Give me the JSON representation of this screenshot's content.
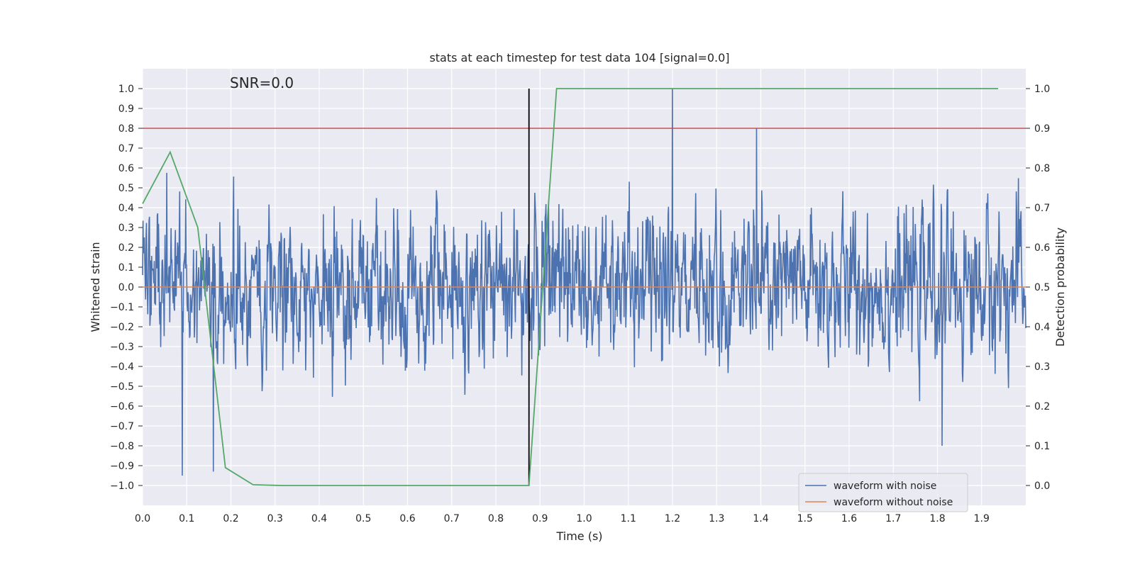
{
  "chart_data": {
    "type": "line",
    "title": "stats at each timestep for test data 104 [signal=0.0]",
    "xlabel": "Time (s)",
    "ylabel": "Whitened strain",
    "y2label": "Detection probability",
    "annotation": "SNR=0.0",
    "xlim": [
      0.0,
      2.0
    ],
    "ylim": [
      -1.1,
      1.1
    ],
    "y2lim": [
      -0.05,
      1.05
    ],
    "x_ticks": [
      0.0,
      0.1,
      0.2,
      0.3,
      0.4,
      0.5,
      0.6,
      0.7,
      0.8,
      0.9,
      1.0,
      1.1,
      1.2,
      1.3,
      1.4,
      1.5,
      1.6,
      1.7,
      1.8,
      1.9
    ],
    "x_tick_labels": [
      "0.0",
      "0.1",
      "0.2",
      "0.3",
      "0.4",
      "0.5",
      "0.6",
      "0.7",
      "0.8",
      "0.9",
      "1.0",
      "1.1",
      "1.2",
      "1.3",
      "1.4",
      "1.5",
      "1.6",
      "1.7",
      "1.8",
      "1.9"
    ],
    "y_ticks": [
      1.0,
      0.9,
      0.8,
      0.7,
      0.6,
      0.5,
      0.4,
      0.3,
      0.2,
      0.1,
      0.0,
      -0.1,
      -0.2,
      -0.3,
      -0.4,
      -0.5,
      -0.6,
      -0.7,
      -0.8,
      -0.9,
      -1.0
    ],
    "y_tick_labels": [
      "1.0",
      "0.9",
      "0.8",
      "0.7",
      "0.6",
      "0.5",
      "0.4",
      "0.3",
      "0.2",
      "0.1",
      "0.0",
      "−0.1",
      "−0.2",
      "−0.3",
      "−0.4",
      "−0.5",
      "−0.6",
      "−0.7",
      "−0.8",
      "−0.9",
      "−1.0"
    ],
    "y2_ticks": [
      1.0,
      0.9,
      0.8,
      0.7,
      0.6,
      0.5,
      0.4,
      0.3,
      0.2,
      0.1,
      0.0
    ],
    "y2_tick_labels": [
      "1.0",
      "0.9",
      "0.8",
      "0.7",
      "0.6",
      "0.5",
      "0.4",
      "0.3",
      "0.2",
      "0.1",
      "0.0"
    ],
    "grid": true,
    "legend_position": "bottom-right",
    "series": [
      {
        "name": "waveform with noise",
        "axis": "left",
        "color": "#4c72b0",
        "description_only": false,
        "x_range": [
          0.0,
          2.0
        ],
        "n_points": 2048,
        "amplitude_std": 0.3,
        "peaks": [
          {
            "x": 0.09,
            "y": -0.95
          },
          {
            "x": 0.16,
            "y": -0.93
          },
          {
            "x": 1.2,
            "y": 1.0
          },
          {
            "x": 1.39,
            "y": 0.8
          },
          {
            "x": 1.81,
            "y": -0.8
          }
        ]
      },
      {
        "name": "waveform without noise",
        "axis": "left",
        "color": "#dd8452",
        "x": [
          0.0,
          2.0
        ],
        "y": [
          0.0,
          0.0
        ]
      },
      {
        "name": "",
        "axis": "right",
        "color": "#55a868",
        "x": [
          0.0,
          0.0625,
          0.125,
          0.1875,
          0.25,
          0.3125,
          0.375,
          0.4375,
          0.5,
          0.5625,
          0.625,
          0.6875,
          0.75,
          0.8125,
          0.875,
          0.9375,
          1.0,
          1.0625,
          1.125,
          1.1875,
          1.25,
          1.3125,
          1.375,
          1.4375,
          1.5,
          1.5625,
          1.625,
          1.6875,
          1.75,
          1.8125,
          1.875,
          1.9375
        ],
        "y": [
          0.71,
          0.84,
          0.65,
          0.045,
          0.002,
          0.0,
          0.0,
          0.0,
          0.0,
          0.0,
          0.0,
          0.0,
          0.0,
          0.0,
          0.0,
          1.0,
          1.0,
          1.0,
          1.0,
          1.0,
          1.0,
          1.0,
          1.0,
          1.0,
          1.0,
          1.0,
          1.0,
          1.0,
          1.0,
          1.0,
          1.0,
          1.0
        ]
      }
    ],
    "reference_lines": {
      "threshold_right_axis": 0.9,
      "threshold_color": "#c44e52",
      "vertical_x": 0.875,
      "vertical_color": "#000000"
    },
    "legend": [
      "waveform with noise",
      "waveform without noise"
    ]
  }
}
